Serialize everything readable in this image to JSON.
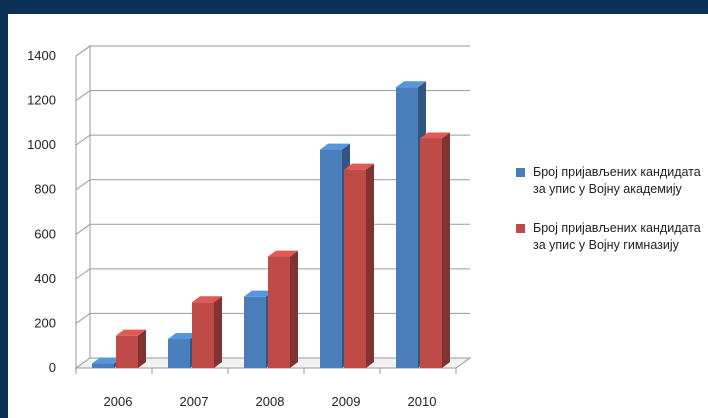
{
  "chart_data": {
    "type": "bar",
    "categories": [
      "2006",
      "2007",
      "2008",
      "2009",
      "2010"
    ],
    "series": [
      {
        "name": "Број пријављених кандидата за упис у Војну академију",
        "values": [
          20,
          130,
          320,
          980,
          1260
        ],
        "color": "#4a7ebb"
      },
      {
        "name": "Број пријављених кандидата за упис у Војну гимназију",
        "values": [
          145,
          295,
          500,
          890,
          1030
        ],
        "color": "#be4b48"
      }
    ],
    "y_ticks": [
      "0",
      "200",
      "400",
      "600",
      "800",
      "1000",
      "1200",
      "1400"
    ],
    "ylim": [
      0,
      1400
    ],
    "grid": true,
    "legend_position": "right",
    "style": "3d-clustered-column"
  }
}
